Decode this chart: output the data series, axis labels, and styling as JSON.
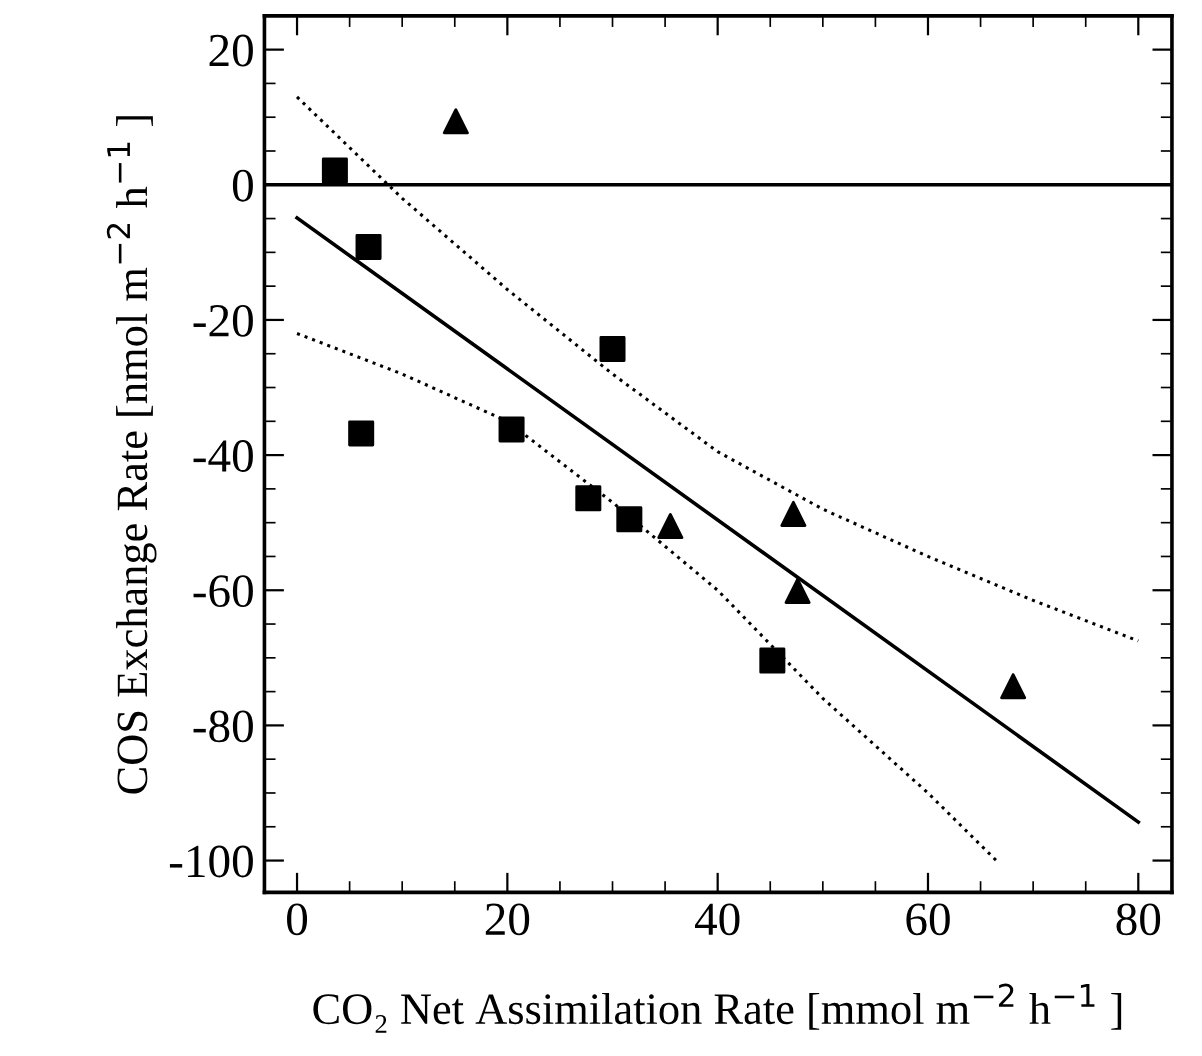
{
  "chart_data": {
    "type": "scatter",
    "xlabel": "CO₂ Net Assimilation Rate [mmol m$^{−2}$ h$^{−1}$ ]",
    "ylabel": "COS Exchange Rate [nmol m$^{−2}$ h$^{−1}$ ]",
    "xlim": [
      -3.1,
      83.2
    ],
    "ylim": [
      -104.7,
      25
    ],
    "xticks": [
      0,
      20,
      40,
      60,
      80
    ],
    "yticks": [
      -100,
      -80,
      -60,
      -40,
      -20,
      0,
      20
    ],
    "grid": false,
    "legend": false,
    "series": [
      {
        "marker": "square",
        "color": "#000000",
        "x": [
          3.6,
          6.8,
          6.1,
          20.4,
          30.0,
          27.7,
          31.6,
          45.2
        ],
        "values": [
          2.1,
          -9.2,
          -36.8,
          -36.2,
          -24.3,
          -46.4,
          -49.5,
          -70.4
        ]
      },
      {
        "marker": "triangle",
        "color": "#000000",
        "x": [
          15.1,
          35.5,
          47.2,
          47.6,
          68.1
        ],
        "values": [
          9.4,
          -50.5,
          -48.7,
          -60.1,
          -74.2
        ]
      },
      {
        "type": "line",
        "line_style": "solid",
        "color": "#000000",
        "x": [
          0,
          80
        ],
        "values": [
          -4.9,
          -94.3
        ]
      },
      {
        "type": "line",
        "line_style": "dotted",
        "color": "#000000",
        "x": [
          0,
          10,
          20,
          30,
          40,
          50,
          60,
          70,
          80
        ],
        "values": [
          13,
          -2,
          -15.5,
          -28,
          -39.5,
          -48,
          -55,
          -61.5,
          -67.5
        ]
      },
      {
        "type": "line",
        "line_style": "dotted",
        "color": "#000000",
        "x": [
          0,
          10,
          20,
          30,
          40,
          50,
          60,
          66.5
        ],
        "values": [
          -22,
          -28,
          -35,
          -47,
          -60,
          -76,
          -90,
          -100
        ]
      }
    ],
    "ref_lines": [
      {
        "axis": "y",
        "value": 0,
        "label": null,
        "color": "#000000",
        "line_style": "solid"
      }
    ]
  }
}
